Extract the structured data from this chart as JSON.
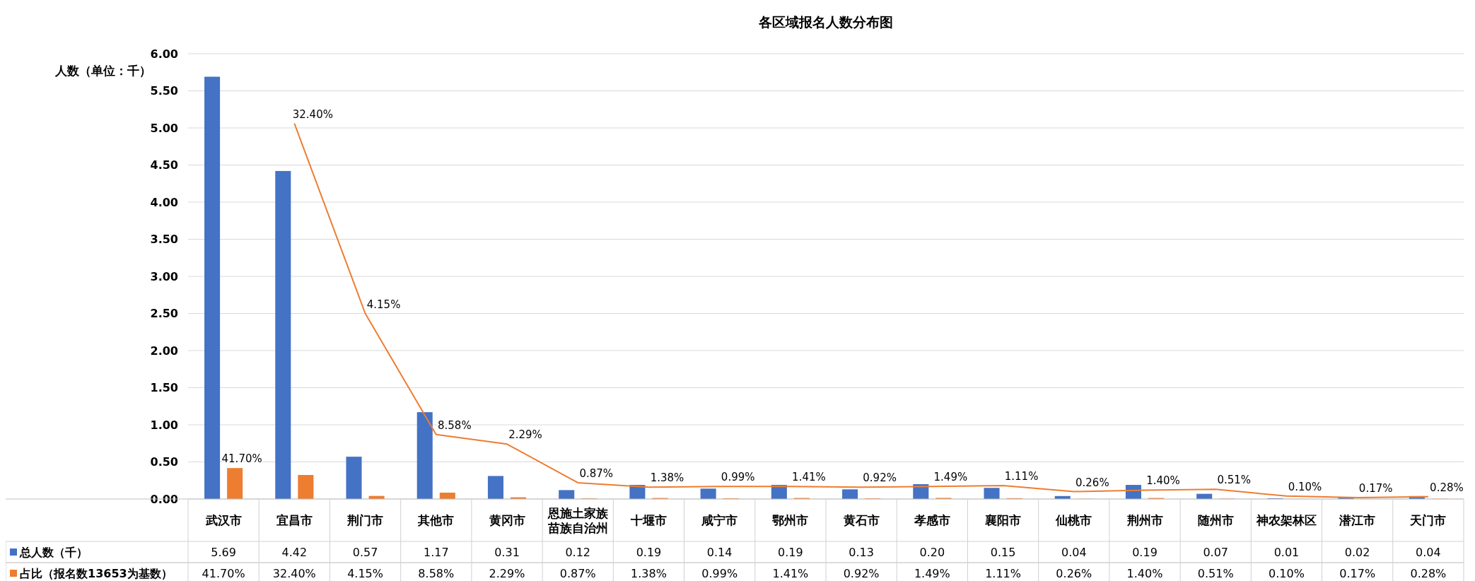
{
  "chart_data": {
    "type": "bar",
    "title": "各区域报名人数分布图",
    "ylabel": "人数（单位：千）",
    "categories": [
      "武汉市",
      "宜昌市",
      "荆门市",
      "其他市",
      "黄冈市",
      "恩施土家族苗族自治州",
      "十堰市",
      "咸宁市",
      "鄂州市",
      "黄石市",
      "孝感市",
      "襄阳市",
      "仙桃市",
      "荆州市",
      "随州市",
      "神农架林区",
      "潜江市",
      "天门市"
    ],
    "series": [
      {
        "name": "总人数（千）",
        "color": "#4472c4",
        "values": [
          5.69,
          4.42,
          0.57,
          1.17,
          0.31,
          0.12,
          0.19,
          0.14,
          0.19,
          0.13,
          0.2,
          0.15,
          0.04,
          0.19,
          0.07,
          0.01,
          0.02,
          0.04
        ],
        "value_labels": [
          "5.69",
          "4.42",
          "0.57",
          "1.17",
          "0.31",
          "0.12",
          "0.19",
          "0.14",
          "0.19",
          "0.13",
          "0.20",
          "0.15",
          "0.04",
          "0.19",
          "0.07",
          "0.01",
          "0.02",
          "0.04"
        ]
      },
      {
        "name": "占比（报名数13653为基数）",
        "color": "#ed7d31",
        "values": [
          0.417,
          0.324,
          0.0415,
          0.0858,
          0.0229,
          0.0087,
          0.0138,
          0.0099,
          0.0141,
          0.0092,
          0.0149,
          0.0111,
          0.0026,
          0.014,
          0.0051,
          0.001,
          0.0017,
          0.0028
        ],
        "value_labels": [
          "41.70%",
          "32.40%",
          "4.15%",
          "8.58%",
          "2.29%",
          "0.87%",
          "1.38%",
          "0.99%",
          "1.41%",
          "0.92%",
          "1.49%",
          "1.11%",
          "0.26%",
          "1.40%",
          "0.51%",
          "0.10%",
          "0.17%",
          "0.28%"
        ]
      },
      {
        "type": "line",
        "color": "#ed7d31",
        "values": [
          null,
          5.06,
          2.5,
          0.87,
          0.74,
          0.22,
          0.16,
          0.17,
          0.17,
          0.16,
          0.17,
          0.18,
          0.1,
          0.12,
          0.13,
          0.04,
          0.02,
          0.03
        ]
      }
    ],
    "ylim": [
      0,
      6
    ],
    "yticks": [
      {
        "value": 0,
        "label": "0.00"
      },
      {
        "value": 0.5,
        "label": "0.50"
      },
      {
        "value": 1,
        "label": "1.00"
      },
      {
        "value": 1.5,
        "label": "1.50"
      },
      {
        "value": 2,
        "label": "2.00"
      },
      {
        "value": 2.5,
        "label": "2.50"
      },
      {
        "value": 3,
        "label": "3.00"
      },
      {
        "value": 3.5,
        "label": "3.50"
      },
      {
        "value": 4,
        "label": "4.00"
      },
      {
        "value": 4.5,
        "label": "4.50"
      },
      {
        "value": 5,
        "label": "5.00"
      },
      {
        "value": 5.5,
        "label": "5.50"
      },
      {
        "value": 6,
        "label": "6.00"
      }
    ],
    "grid": "y",
    "legend": "bottom"
  }
}
